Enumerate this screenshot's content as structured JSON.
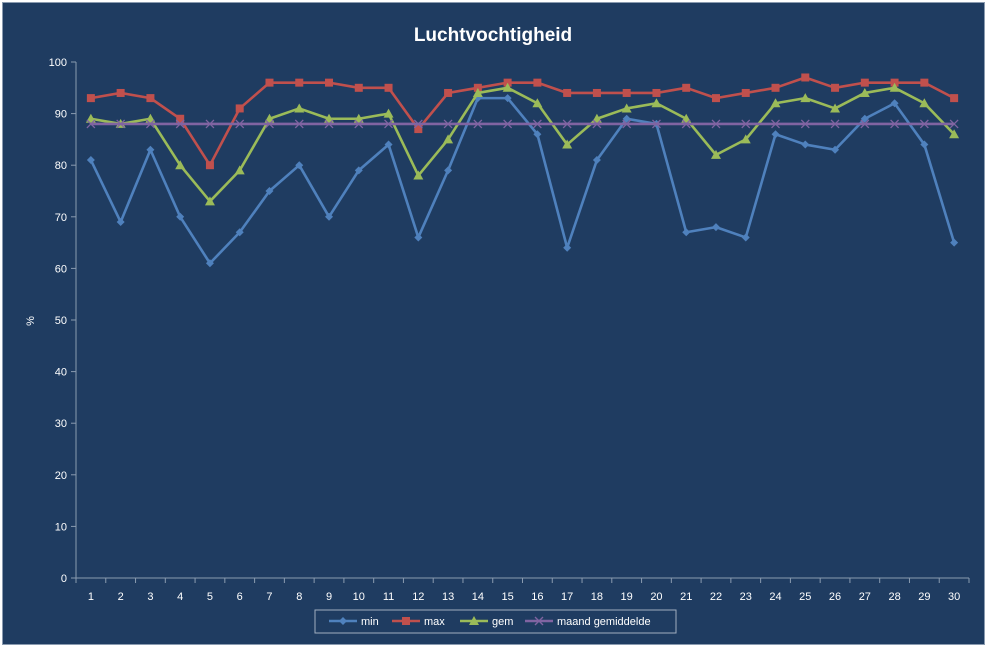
{
  "chart_data": {
    "type": "line",
    "title": "Luchtvochtigheid",
    "ylabel": "%",
    "xlabel": "",
    "ylim": [
      0,
      100
    ],
    "yticks": [
      0,
      10,
      20,
      30,
      40,
      50,
      60,
      70,
      80,
      90,
      100
    ],
    "grid": false,
    "legend_position": "bottom",
    "categories": [
      "1",
      "2",
      "3",
      "4",
      "5",
      "6",
      "7",
      "8",
      "9",
      "10",
      "11",
      "12",
      "13",
      "14",
      "15",
      "16",
      "17",
      "18",
      "19",
      "20",
      "21",
      "22",
      "23",
      "24",
      "25",
      "26",
      "27",
      "28",
      "29",
      "30"
    ],
    "series": [
      {
        "name": "min",
        "color": "#4f81bd",
        "marker": "diamond",
        "values": [
          81,
          69,
          83,
          70,
          61,
          67,
          75,
          80,
          70,
          79,
          84,
          66,
          79,
          93,
          93,
          86,
          64,
          81,
          89,
          88,
          67,
          68,
          66,
          86,
          84,
          83,
          89,
          92,
          84,
          65
        ]
      },
      {
        "name": "max",
        "color": "#c0504d",
        "marker": "square",
        "values": [
          93,
          94,
          93,
          89,
          80,
          91,
          96,
          96,
          96,
          95,
          95,
          87,
          94,
          95,
          96,
          96,
          94,
          94,
          94,
          94,
          95,
          93,
          94,
          95,
          97,
          95,
          96,
          96,
          96,
          93
        ]
      },
      {
        "name": "gem",
        "color": "#9bbb59",
        "marker": "triangle",
        "values": [
          89,
          88,
          89,
          80,
          73,
          79,
          89,
          91,
          89,
          89,
          90,
          78,
          85,
          94,
          95,
          92,
          84,
          89,
          91,
          92,
          89,
          82,
          85,
          92,
          93,
          91,
          94,
          95,
          92,
          86
        ]
      },
      {
        "name": "maand gemiddelde",
        "color": "#8064a2",
        "marker": "x",
        "values": [
          88,
          88,
          88,
          88,
          88,
          88,
          88,
          88,
          88,
          88,
          88,
          88,
          88,
          88,
          88,
          88,
          88,
          88,
          88,
          88,
          88,
          88,
          88,
          88,
          88,
          88,
          88,
          88,
          88,
          88
        ]
      }
    ]
  }
}
